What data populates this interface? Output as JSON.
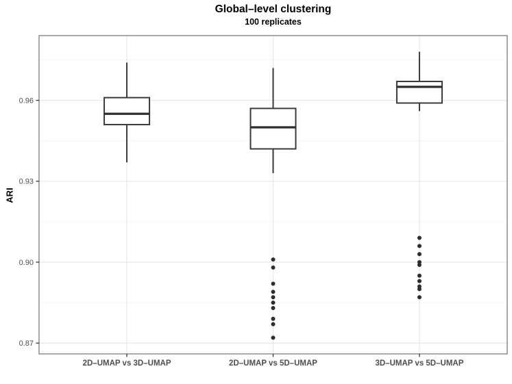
{
  "chart_data": {
    "type": "boxplot",
    "title": "Global–level clustering",
    "subtitle": "100 replicates",
    "ylabel": "ARI",
    "xlabel": "",
    "categories": [
      "2D–UMAP vs 3D–UMAP",
      "2D–UMAP vs 5D–UMAP",
      "3D–UMAP vs 5D–UMAP"
    ],
    "y_ticks": [
      0.87,
      0.9,
      0.93,
      0.96
    ],
    "y_minor_ticks": [
      0.885,
      0.915,
      0.945,
      0.975
    ],
    "ylim": [
      0.866,
      0.984
    ],
    "grid": true,
    "legend": false,
    "series": [
      {
        "category": "2D–UMAP vs 3D–UMAP",
        "whisker_low": 0.937,
        "q1": 0.951,
        "median": 0.955,
        "q3": 0.961,
        "whisker_high": 0.974,
        "outliers": []
      },
      {
        "category": "2D–UMAP vs 5D–UMAP",
        "whisker_low": 0.933,
        "q1": 0.942,
        "median": 0.95,
        "q3": 0.957,
        "whisker_high": 0.972,
        "outliers": [
          0.901,
          0.898,
          0.892,
          0.889,
          0.887,
          0.885,
          0.883,
          0.879,
          0.877,
          0.872
        ]
      },
      {
        "category": "3D–UMAP vs 5D–UMAP",
        "whisker_low": 0.956,
        "q1": 0.959,
        "median": 0.965,
        "q3": 0.967,
        "whisker_high": 0.978,
        "outliers": [
          0.909,
          0.906,
          0.903,
          0.9,
          0.899,
          0.895,
          0.893,
          0.891,
          0.89,
          0.887
        ]
      }
    ],
    "colors": {
      "background": "#ffffff",
      "panel_border": "#8c8c8c",
      "grid_major": "#e8e8e8",
      "grid_minor": "#f4f4f4",
      "box_border": "#3a3a3a",
      "median_line": "#2e2e2e",
      "outlier_dot": "#2e2e2e",
      "tick_mark": "#333333",
      "axis_text": "#4d4d4d",
      "title_text": "#000000"
    }
  }
}
